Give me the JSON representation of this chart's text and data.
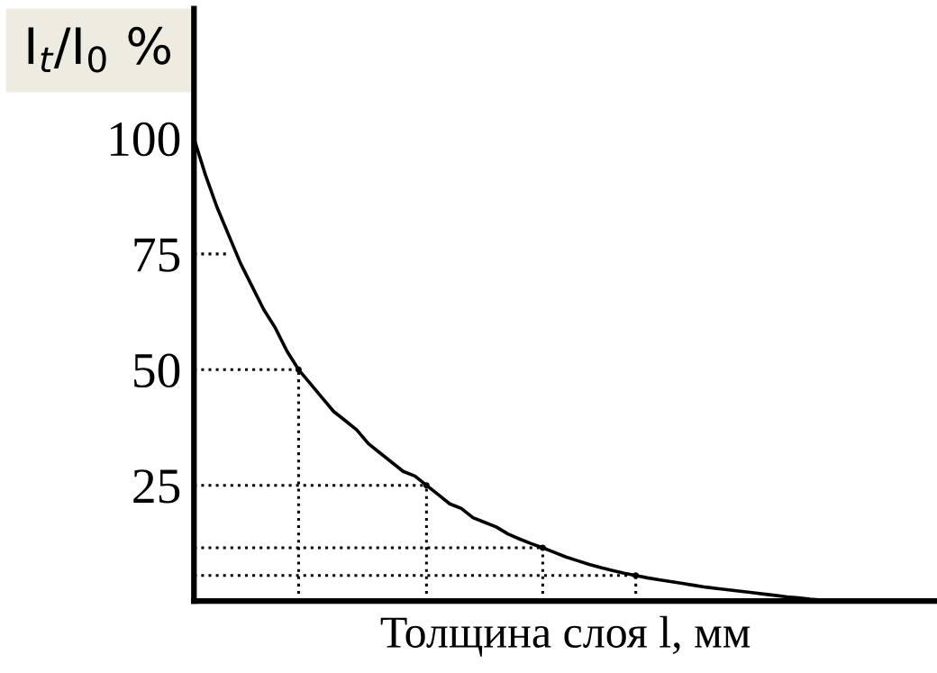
{
  "chart_data": {
    "type": "line",
    "xlabel": "Толщина слоя l, мм",
    "ylabel": "I$_{t}$/I$_{0}$ %",
    "categories": [
      null,
      null,
      null,
      null,
      null,
      null,
      null,
      null,
      null,
      null,
      null,
      null,
      null,
      null,
      null,
      null,
      null,
      null,
      null,
      null,
      null,
      null,
      null,
      null,
      null,
      null,
      null,
      null,
      null,
      null,
      null,
      null,
      null,
      null,
      null,
      null,
      null,
      null,
      null,
      null,
      null,
      null,
      null,
      null,
      null,
      null,
      null,
      null,
      null,
      null,
      null,
      null,
      null,
      null,
      null,
      null
    ],
    "ylim": [
      0,
      128
    ],
    "yticks": [
      25,
      50,
      75,
      100
    ],
    "tick_labels": "y",
    "grid": false,
    "legend": false,
    "series": [
      {
        "color": "#000000",
        "line_style": "solid",
        "values": [
          100,
          92,
          85,
          79,
          73,
          68,
          63,
          59,
          54,
          50,
          47,
          44,
          41,
          39,
          37,
          34,
          32,
          30,
          28,
          27,
          25,
          23,
          21,
          20,
          18,
          17,
          16,
          14.5,
          13.4,
          12.4,
          11.5,
          10.5,
          9.5,
          8.7,
          7.9,
          7.2,
          6.6,
          6.0,
          5.5,
          5.0,
          4.6,
          4.2,
          3.8,
          3.4,
          3.0,
          2.7,
          2.4,
          2.1,
          1.8,
          1.5,
          1.2,
          0.9,
          0.7,
          0.4,
          0.2,
          0
        ]
      },
      {
        "type": "line",
        "color": "#000000",
        "line_style": "dotted",
        "values": [
          75,
          75,
          75,
          75,
          null,
          null,
          null,
          null,
          null,
          null,
          null,
          null,
          null,
          null,
          null,
          null,
          null,
          null,
          null,
          null,
          null,
          null,
          null,
          null,
          null,
          null,
          null,
          null,
          null,
          null,
          null,
          null,
          null,
          null,
          null,
          null,
          null,
          null,
          null,
          null,
          null,
          null,
          null,
          null,
          null,
          null,
          null,
          null,
          null,
          null,
          null,
          null,
          null,
          null,
          null,
          null
        ]
      },
      {
        "type": "line",
        "color": "#000000",
        "line_style": "dotted",
        "values": [
          50,
          50,
          50,
          50,
          50,
          50,
          50,
          50,
          50,
          50,
          null,
          null,
          null,
          null,
          null,
          null,
          null,
          null,
          null,
          null,
          null,
          null,
          null,
          null,
          null,
          null,
          null,
          null,
          null,
          null,
          null,
          null,
          null,
          null,
          null,
          null,
          null,
          null,
          null,
          null,
          null,
          null,
          null,
          null,
          null,
          null,
          null,
          null,
          null,
          null,
          null,
          null,
          null,
          null,
          null,
          null
        ]
      },
      {
        "type": "line",
        "color": "#000000",
        "line_style": "dotted",
        "values": [
          25,
          25,
          25,
          25,
          25,
          25,
          25,
          25,
          25,
          25,
          25,
          25,
          25,
          25,
          25,
          25,
          25,
          25,
          25,
          25,
          25,
          null,
          null,
          null,
          null,
          null,
          null,
          null,
          null,
          null,
          null,
          null,
          null,
          null,
          null,
          null,
          null,
          null,
          null,
          null,
          null,
          null,
          null,
          null,
          null,
          null,
          null,
          null,
          null,
          null,
          null,
          null,
          null,
          null,
          null,
          null
        ]
      },
      {
        "type": "line",
        "color": "#000000",
        "line_style": "dotted",
        "values": [
          11.5,
          11.5,
          11.5,
          11.5,
          11.5,
          11.5,
          11.5,
          11.5,
          11.5,
          11.5,
          11.5,
          11.5,
          11.5,
          11.5,
          11.5,
          11.5,
          11.5,
          11.5,
          11.5,
          11.5,
          11.5,
          11.5,
          11.5,
          11.5,
          11.5,
          11.5,
          11.5,
          11.5,
          11.5,
          11.5,
          11.5,
          null,
          null,
          null,
          null,
          null,
          null,
          null,
          null,
          null,
          null,
          null,
          null,
          null,
          null,
          null,
          null,
          null,
          null,
          null,
          null,
          null,
          null,
          null,
          null,
          null
        ]
      },
      {
        "type": "line",
        "color": "#000000",
        "line_style": "dotted",
        "values": [
          5.5,
          5.5,
          5.5,
          5.5,
          5.5,
          5.5,
          5.5,
          5.5,
          5.5,
          5.5,
          5.5,
          5.5,
          5.5,
          5.5,
          5.5,
          5.5,
          5.5,
          5.5,
          5.5,
          5.5,
          5.5,
          5.5,
          5.5,
          5.5,
          5.5,
          5.5,
          5.5,
          5.5,
          5.5,
          5.5,
          5.5,
          5.5,
          5.5,
          5.5,
          5.5,
          5.5,
          5.5,
          5.5,
          5.5,
          null,
          null,
          null,
          null,
          null,
          null,
          null,
          null,
          null,
          null,
          null,
          null,
          null,
          null,
          null,
          null,
          null
        ]
      },
      {
        "type": "lollipop",
        "color": "#000000",
        "line_style": "dotted",
        "marker": "circle",
        "values": [
          null,
          null,
          null,
          null,
          null,
          null,
          null,
          null,
          null,
          50,
          null,
          null,
          null,
          null,
          null,
          null,
          null,
          null,
          null,
          null,
          25,
          null,
          null,
          null,
          null,
          null,
          null,
          null,
          null,
          null,
          11.5,
          null,
          null,
          null,
          null,
          null,
          null,
          null,
          5.5,
          null,
          null,
          null,
          null,
          null,
          null,
          null,
          null,
          null,
          null,
          null,
          null,
          null,
          null,
          null,
          null,
          null
        ]
      }
    ]
  }
}
